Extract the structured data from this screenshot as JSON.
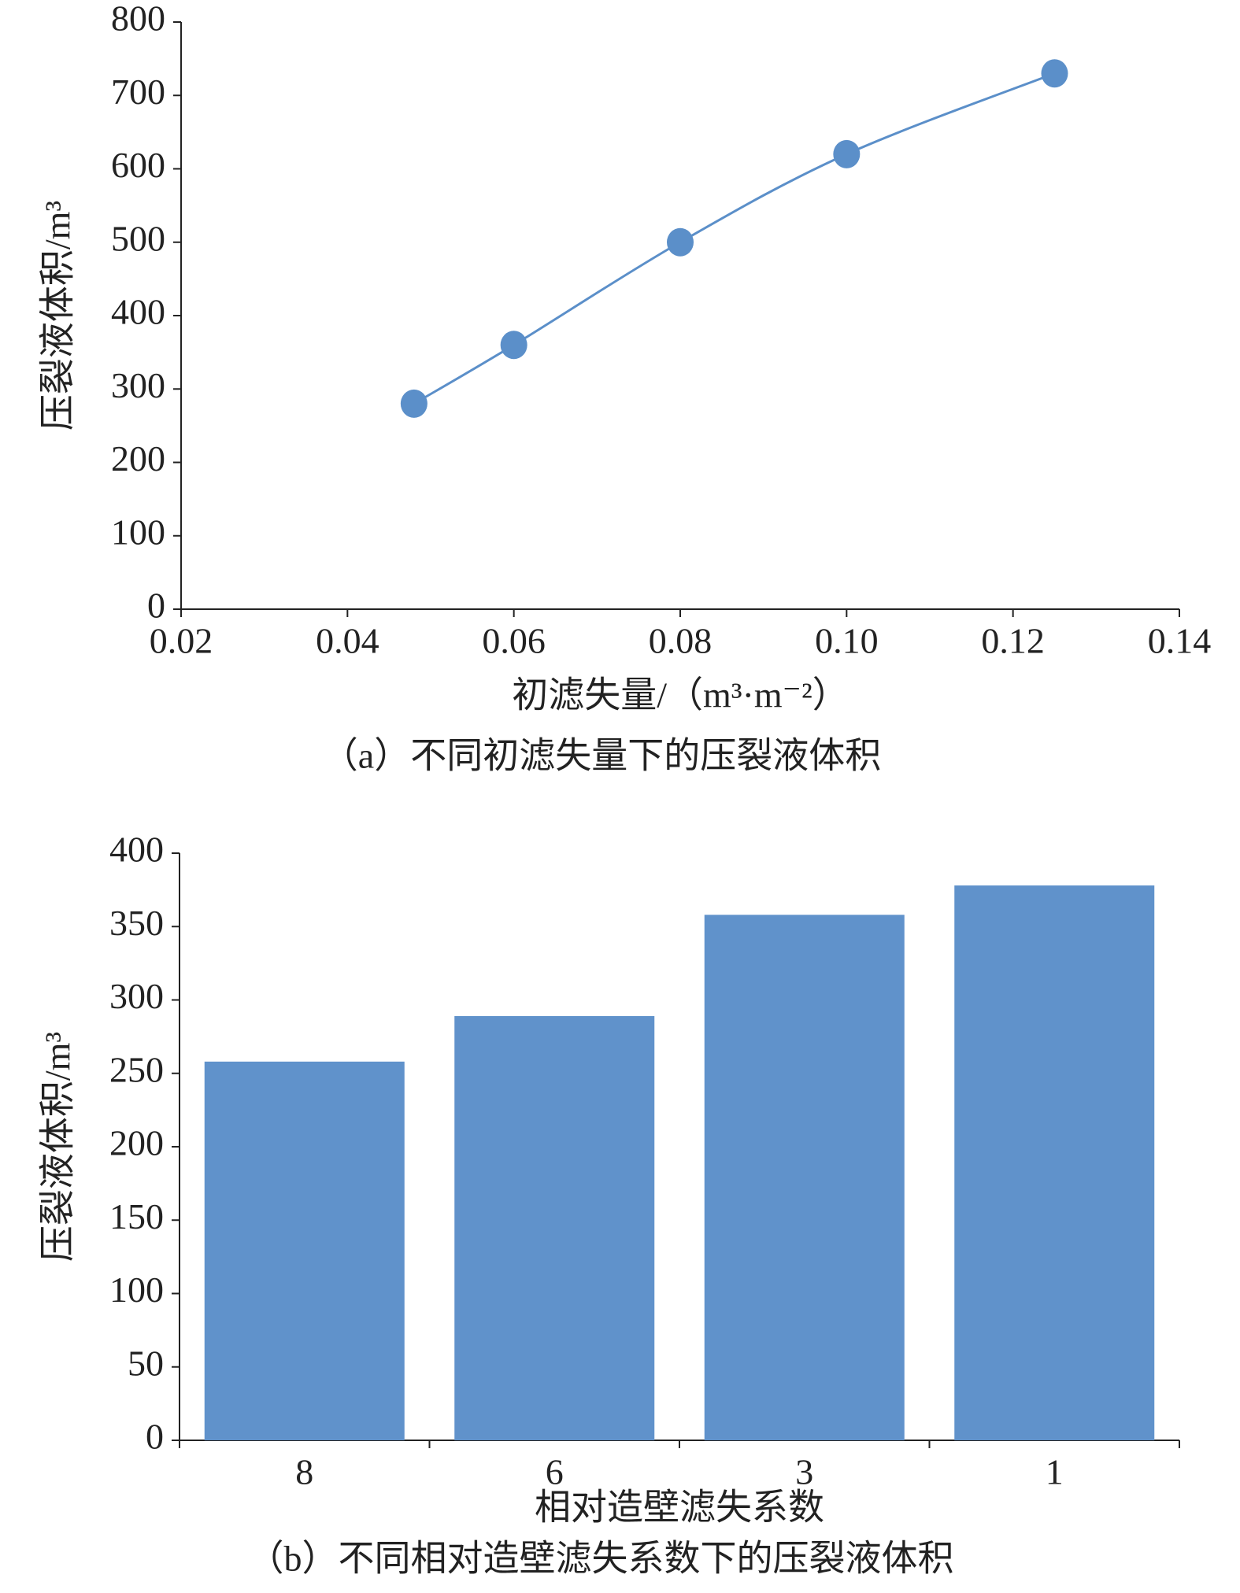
{
  "chart_data": [
    {
      "type": "line",
      "caption": "（a）不同初滤失量下的压裂液体积",
      "x_label": "初滤失量/（m³·m⁻²）",
      "y_label": "压裂液体积/m³",
      "x": [
        0.048,
        0.06,
        0.08,
        0.1,
        0.125
      ],
      "series": [
        {
          "name": "压裂液体积",
          "color": "#5b8fc9",
          "values": [
            280,
            360,
            500,
            620,
            730
          ]
        }
      ],
      "xlim": [
        0.02,
        0.14
      ],
      "xticks": [
        0.02,
        0.04,
        0.06,
        0.08,
        {
          "value": 0.1,
          "label": "0.10"
        },
        0.12,
        0.14
      ],
      "ylim": [
        0,
        800
      ],
      "yticks": [
        0,
        100,
        200,
        300,
        400,
        500,
        600,
        700,
        800
      ],
      "smooth": true
    },
    {
      "type": "bar",
      "caption": "（b）不同相对造壁滤失系数下的压裂液体积",
      "x_label": "相对造壁滤失系数",
      "y_label": "压裂液体积/m³",
      "categories": [
        "8",
        "6",
        "3",
        "1"
      ],
      "values": [
        258,
        289,
        358,
        378
      ],
      "color": "#6092cb",
      "ylim": [
        0,
        400
      ],
      "yticks": [
        0,
        50,
        100,
        150,
        200,
        250,
        300,
        350,
        400
      ]
    }
  ]
}
